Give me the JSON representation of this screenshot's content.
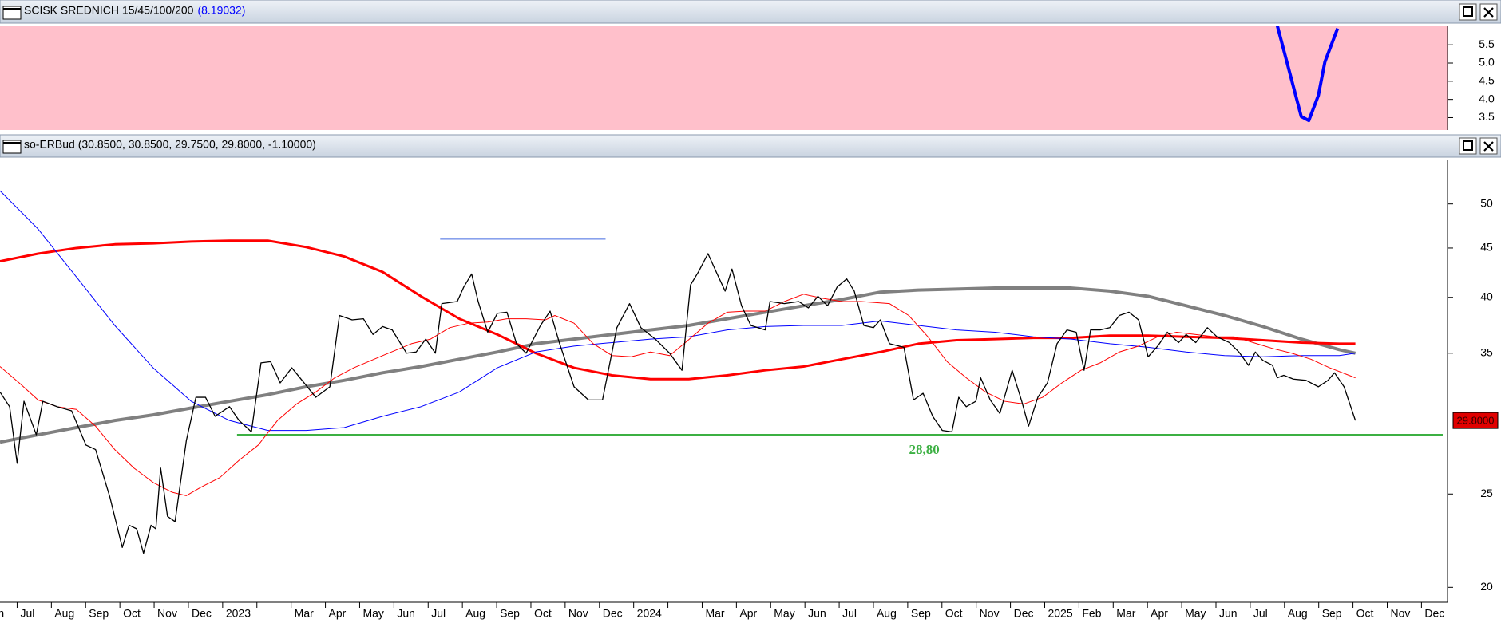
{
  "chart_data": [
    {
      "type": "line",
      "title": "SCISK SREDNICH 15/45/100/200",
      "subtitle": "(8.19032)",
      "subtitle_color": "#0000ff",
      "background": "#ffc0cb",
      "xlim": [
        0.5,
        42.76
      ],
      "ylim": [
        3.16,
        6.03
      ],
      "yticks": [
        3.5,
        {
          "value": 4,
          "label": "4.0"
        },
        4.5,
        {
          "value": 5,
          "label": "5.0"
        },
        5.5
      ],
      "series": [
        {
          "color": "#0000ff",
          "line_width": 4,
          "x": [
            37.79,
            38.07,
            38.49,
            38.71,
            38.99,
            39.18,
            39.55
          ],
          "values": [
            6.03,
            5.03,
            3.53,
            3.42,
            4.11,
            5.03,
            5.95
          ]
        }
      ]
    },
    {
      "type": "line",
      "title": "so-ERBud (30.8500, 30.8500, 29.7500, 29.8000, -1.10000)",
      "log": true,
      "background": "#ffffff",
      "xlim": [
        0.5,
        42.76
      ],
      "ylim": [
        19.3,
        55.6
      ],
      "yticks": [
        20,
        25,
        35,
        40,
        45,
        50
      ],
      "categories": [
        "Jun",
        "Jul",
        "Aug",
        "Sep",
        "Oct",
        "Nov",
        "Dec",
        "2023",
        null,
        "Mar",
        "Apr",
        "May",
        "Jun",
        "Jul",
        "Aug",
        "Sep",
        "Oct",
        "Nov",
        "Dec",
        "2024",
        null,
        "Mar",
        "Apr",
        "May",
        "Jun",
        "Jul",
        "Aug",
        "Sep",
        "Oct",
        "Nov",
        "Dec",
        "2025",
        "Feb",
        "Mar",
        "Apr",
        "May",
        "Jun",
        "Jul",
        "Aug",
        "Sep",
        "Oct",
        "Nov",
        "Dec"
      ],
      "last_price": {
        "value": 29.8,
        "label": "29.8000",
        "color": "#e00000"
      },
      "hlines": [
        {
          "value": 28.8,
          "label": "28,80",
          "x": [
            7.42,
            42.62
          ],
          "color": "#3cb043"
        },
        {
          "value": 46.0,
          "x": [
            13.35,
            18.18
          ],
          "color": "#4169e1"
        }
      ],
      "series": [
        {
          "color": "#808080",
          "line_width": 4,
          "x": [
            0.5,
            1.61,
            2.73,
            3.85,
            4.97,
            6.08,
            7.2,
            8.32,
            9.44,
            10.55,
            11.67,
            12.79,
            13.91,
            15.02,
            16.14,
            17.26,
            18.37,
            19.49,
            20.61,
            21.73,
            22.84,
            23.96,
            25.08,
            26.2,
            27.31,
            28.43,
            29.55,
            30.67,
            31.78,
            32.9,
            34.02,
            35.13,
            36.25,
            37.37,
            38.49,
            39.6,
            40.07
          ],
          "values": [
            28.3,
            28.8,
            29.3,
            29.8,
            30.2,
            30.7,
            31.2,
            31.7,
            32.3,
            32.8,
            33.4,
            33.9,
            34.5,
            35.1,
            35.8,
            36.2,
            36.6,
            37.0,
            37.4,
            38.0,
            38.6,
            39.2,
            39.8,
            40.5,
            40.7,
            40.8,
            40.9,
            40.9,
            40.9,
            40.6,
            40.1,
            39.2,
            38.3,
            37.3,
            36.2,
            35.3,
            35.0
          ]
        },
        {
          "color": "#ff0000",
          "line_width": 3,
          "x": [
            0.5,
            1.61,
            2.73,
            3.85,
            4.97,
            6.08,
            7.2,
            8.32,
            9.44,
            10.55,
            11.67,
            12.79,
            13.91,
            15.02,
            16.14,
            17.26,
            18.37,
            19.49,
            20.61,
            21.73,
            22.84,
            23.96,
            25.08,
            26.2,
            27.31,
            28.43,
            29.55,
            30.67,
            31.78,
            32.9,
            34.02,
            35.13,
            36.25,
            37.37,
            38.49,
            39.6,
            40.07
          ],
          "values": [
            43.6,
            44.4,
            45.0,
            45.4,
            45.5,
            45.7,
            45.8,
            45.8,
            45.1,
            44.1,
            42.5,
            40.1,
            38.0,
            36.6,
            35.0,
            33.8,
            33.2,
            32.9,
            32.9,
            33.2,
            33.6,
            33.9,
            34.5,
            35.1,
            35.8,
            36.1,
            36.2,
            36.3,
            36.3,
            36.5,
            36.5,
            36.4,
            36.3,
            36.1,
            35.9,
            35.8,
            35.8
          ]
        },
        {
          "color": "#0000ff",
          "line_width": 1,
          "x": [
            0.5,
            1.61,
            2.73,
            3.85,
            4.97,
            6.08,
            7.2,
            8.32,
            9.44,
            10.55,
            11.67,
            12.79,
            13.91,
            15.02,
            16.14,
            17.26,
            18.37,
            19.49,
            20.61,
            21.73,
            22.84,
            23.96,
            25.08,
            26.2,
            27.31,
            28.43,
            29.55,
            30.67,
            31.78,
            32.9,
            34.02,
            35.13,
            36.25,
            37.37,
            38.49,
            39.6,
            40.07
          ],
          "values": [
            51.6,
            47.1,
            42.0,
            37.4,
            33.8,
            31.2,
            29.8,
            29.1,
            29.1,
            29.3,
            30.1,
            30.8,
            31.9,
            33.8,
            35.1,
            35.6,
            35.9,
            36.2,
            36.4,
            37.0,
            37.3,
            37.4,
            37.4,
            37.8,
            37.4,
            37.0,
            36.8,
            36.4,
            36.2,
            35.8,
            35.5,
            35.1,
            34.8,
            34.7,
            34.8,
            34.8,
            35.0
          ]
        },
        {
          "color": "#ff0000",
          "line_width": 1,
          "x": [
            0.5,
            1.06,
            1.61,
            2.17,
            2.73,
            3.29,
            3.85,
            4.41,
            4.97,
            5.53,
            5.94,
            6.36,
            6.92,
            7.48,
            8.04,
            8.6,
            9.16,
            9.72,
            10.27,
            10.83,
            11.67,
            12.51,
            13.07,
            13.63,
            14.18,
            14.74,
            15.3,
            15.86,
            16.42,
            16.7,
            17.26,
            17.82,
            18.37,
            18.93,
            19.49,
            20.05,
            20.47,
            21.17,
            21.73,
            22.28,
            22.84,
            23.4,
            23.96,
            24.52,
            25.08,
            25.64,
            26.47,
            27.03,
            27.59,
            28.15,
            28.71,
            29.27,
            29.83,
            30.39,
            30.94,
            31.5,
            32.06,
            32.62,
            33.18,
            33.74,
            34.3,
            34.85,
            35.41,
            35.97,
            36.53,
            37.09,
            37.65,
            38.21,
            38.77,
            39.32,
            40.07
          ],
          "values": [
            33.9,
            32.6,
            31.3,
            30.8,
            30.6,
            29.4,
            27.8,
            26.6,
            25.7,
            25.1,
            24.9,
            25.4,
            26.0,
            27.1,
            28.1,
            29.8,
            31.0,
            31.9,
            33.0,
            33.8,
            34.8,
            35.8,
            36.2,
            37.2,
            37.6,
            37.7,
            38.0,
            38.0,
            37.9,
            38.3,
            37.6,
            35.8,
            34.8,
            34.7,
            35.1,
            34.8,
            35.8,
            37.6,
            38.6,
            38.7,
            38.7,
            39.6,
            40.3,
            39.9,
            39.6,
            39.6,
            39.4,
            38.3,
            36.4,
            34.3,
            33.0,
            31.9,
            31.2,
            31.0,
            31.5,
            32.6,
            33.6,
            34.2,
            35.1,
            35.6,
            36.4,
            36.8,
            36.6,
            36.4,
            36.4,
            35.9,
            35.4,
            35.0,
            34.5,
            33.8,
            33.0
          ]
        },
        {
          "color": "#000000",
          "line_width": 1.3,
          "x": [
            0.5,
            0.78,
            1.0,
            1.2,
            1.56,
            1.75,
            2.17,
            2.59,
            3.01,
            3.29,
            3.71,
            4.07,
            4.27,
            4.49,
            4.69,
            4.91,
            5.05,
            5.19,
            5.39,
            5.61,
            5.94,
            6.22,
            6.5,
            6.78,
            7.2,
            7.48,
            7.84,
            8.12,
            8.4,
            8.68,
            9.02,
            9.38,
            9.72,
            10.13,
            10.41,
            10.78,
            11.11,
            11.39,
            11.67,
            11.95,
            12.37,
            12.65,
            12.93,
            13.21,
            13.4,
            13.85,
            14.04,
            14.27,
            14.46,
            14.74,
            15.02,
            15.3,
            15.58,
            15.86,
            16.28,
            16.56,
            16.84,
            17.26,
            17.68,
            18.09,
            18.51,
            18.88,
            19.21,
            19.63,
            20.05,
            20.41,
            20.66,
            20.89,
            21.17,
            21.45,
            21.67,
            21.87,
            22.15,
            22.42,
            22.84,
            22.98,
            23.4,
            23.82,
            24.1,
            24.38,
            24.66,
            24.94,
            25.22,
            25.44,
            25.72,
            26.0,
            26.2,
            26.47,
            26.89,
            27.17,
            27.45,
            27.73,
            28.01,
            28.29,
            28.49,
            28.71,
            28.99,
            29.13,
            29.41,
            29.69,
            30.05,
            30.33,
            30.53,
            30.8,
            31.08,
            31.36,
            31.65,
            31.92,
            32.15,
            32.34,
            32.62,
            32.9,
            33.18,
            33.46,
            33.74,
            34.02,
            34.3,
            34.58,
            34.91,
            35.13,
            35.41,
            35.75,
            36.03,
            36.39,
            36.67,
            36.95,
            37.15,
            37.37,
            37.65,
            37.79,
            37.98,
            38.26,
            38.63,
            38.99,
            39.27,
            39.46,
            39.74,
            40.07
          ],
          "values": [
            31.9,
            30.8,
            26.9,
            31.2,
            28.8,
            31.2,
            30.8,
            30.5,
            28.1,
            27.8,
            24.8,
            22.0,
            23.2,
            23.0,
            21.7,
            23.2,
            23.0,
            26.6,
            23.7,
            23.4,
            28.4,
            31.5,
            31.5,
            30.1,
            30.8,
            29.8,
            29.0,
            34.2,
            34.3,
            32.6,
            33.8,
            32.6,
            31.5,
            32.3,
            38.3,
            37.9,
            38.0,
            36.6,
            37.3,
            37.0,
            35.0,
            35.1,
            36.2,
            35.0,
            39.4,
            39.6,
            41.0,
            42.3,
            39.6,
            36.8,
            38.5,
            38.6,
            35.8,
            35.0,
            37.4,
            38.7,
            35.8,
            32.3,
            31.3,
            31.3,
            37.2,
            39.4,
            37.2,
            36.2,
            35.0,
            33.6,
            41.2,
            42.5,
            44.4,
            42.2,
            40.6,
            42.8,
            39.2,
            37.4,
            37.0,
            39.6,
            39.4,
            39.6,
            39.0,
            40.1,
            39.2,
            41.0,
            41.8,
            40.6,
            37.4,
            37.2,
            37.9,
            35.8,
            35.5,
            31.3,
            31.8,
            30.1,
            29.1,
            29.0,
            31.5,
            30.8,
            31.2,
            33.0,
            31.3,
            30.3,
            33.6,
            31.2,
            29.4,
            31.5,
            32.6,
            35.8,
            37.0,
            36.8,
            33.6,
            37.0,
            37.0,
            37.2,
            38.3,
            38.6,
            37.9,
            34.7,
            35.6,
            36.8,
            35.9,
            36.6,
            35.9,
            37.2,
            36.4,
            35.9,
            35.1,
            34.0,
            35.1,
            34.4,
            34.0,
            33.0,
            33.2,
            32.9,
            32.8,
            32.3,
            32.8,
            33.4,
            32.3,
            29.8
          ]
        }
      ]
    }
  ]
}
